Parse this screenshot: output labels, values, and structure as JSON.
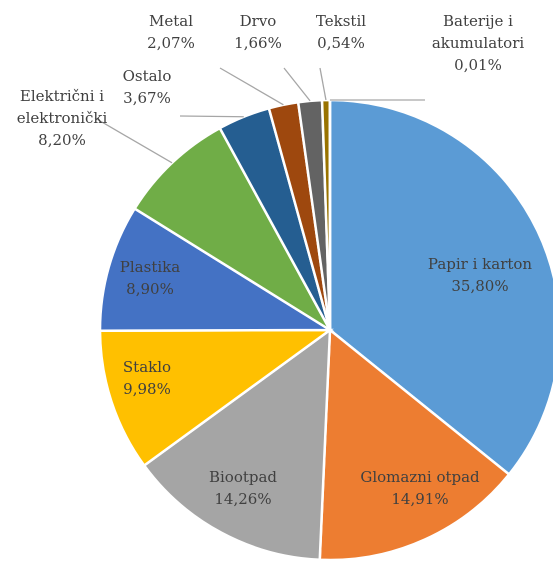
{
  "chart_data": {
    "type": "pie",
    "title": "",
    "categories": [
      "Papir i karton",
      "Glomazni otpad",
      "Biootpad",
      "Staklo",
      "Plastika",
      "Električni i elektronički",
      "Ostalo",
      "Metal",
      "Drvo",
      "Tekstil",
      "Baterije i akumulatori"
    ],
    "values": [
      35.8,
      14.91,
      14.26,
      9.98,
      8.9,
      8.2,
      3.67,
      2.07,
      1.66,
      0.54,
      0.01
    ],
    "value_labels": [
      "35,80%",
      "14,91%",
      "14,26%",
      "9,98%",
      "8,90%",
      "8,20%",
      "3,67%",
      "2,07%",
      "1,66%",
      "0,54%",
      "0,01%"
    ],
    "label_lines": [
      [
        "Papir i karton"
      ],
      [
        "Glomazni otpad"
      ],
      [
        "Biootpad"
      ],
      [
        "Staklo"
      ],
      [
        "Plastika"
      ],
      [
        "Električni i",
        "elektronički"
      ],
      [
        "Ostalo"
      ],
      [
        "Metal"
      ],
      [
        "Drvo"
      ],
      [
        "Tekstil"
      ],
      [
        "Baterije i",
        "akumulatori"
      ]
    ],
    "colors": [
      "#5B9BD5",
      "#ED7D31",
      "#A5A5A5",
      "#FFC000",
      "#4472C4",
      "#70AD47",
      "#255E91",
      "#9E480E",
      "#636363",
      "#997300",
      "#264478"
    ],
    "start_angle": "12 o'clock",
    "direction": "clockwise",
    "legend": "none"
  }
}
